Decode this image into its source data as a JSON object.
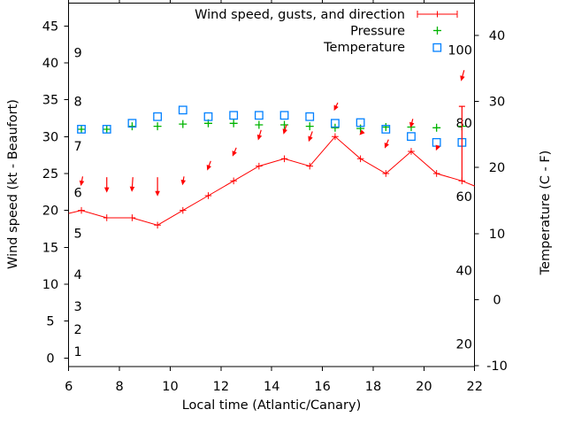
{
  "figure": {
    "background": "#ffffff",
    "colors": {
      "wind": "#ff0000",
      "pressure": "#00b400",
      "temperature": "#0080ff",
      "axis": "#000000"
    },
    "legend": {
      "position": "top-right-inside",
      "items": [
        {
          "label": "Wind speed, gusts, and direction",
          "series": "wind",
          "glyph": "errorbar-sample",
          "color": "#ff0000"
        },
        {
          "label": "Pressure",
          "series": "pressure",
          "glyph": "plus",
          "color": "#00b400"
        },
        {
          "label": "Temperature",
          "series": "temperature",
          "glyph": "open-square",
          "color": "#0080ff"
        }
      ]
    }
  },
  "chart_data": {
    "type": "line",
    "xlabel": "Local time (Atlantic/Canary)",
    "ylabel_left": "Wind speed (kt - Beaufort)",
    "ylabel_right": "Temperature (C - F)",
    "x_range": [
      6,
      22
    ],
    "y_left_range_kt": [
      -1.2,
      48.1
    ],
    "y_right_range_c": [
      -10.2,
      44.9
    ],
    "x_ticks": [
      6,
      8,
      10,
      12,
      14,
      16,
      18,
      20,
      22
    ],
    "y_left_ticks_kt": [
      0,
      5,
      10,
      15,
      20,
      25,
      30,
      35,
      40,
      45
    ],
    "y_right_ticks_c": [
      -10,
      0,
      10,
      20,
      30,
      40
    ],
    "grid": false,
    "beaufort_scale_labels": [
      {
        "text": "1",
        "kt": 0.9
      },
      {
        "text": "2",
        "kt": 3.9
      },
      {
        "text": "3",
        "kt": 7.0
      },
      {
        "text": "4",
        "kt": 11.3
      },
      {
        "text": "5",
        "kt": 16.9
      },
      {
        "text": "6",
        "kt": 22.4
      },
      {
        "text": "7",
        "kt": 28.7
      },
      {
        "text": "8",
        "kt": 34.8
      },
      {
        "text": "9",
        "kt": 41.4
      }
    ],
    "fahrenheit_scale_labels": [
      {
        "text": "20",
        "c": -6.7
      },
      {
        "text": "40",
        "c": 4.4
      },
      {
        "text": "60",
        "c": 15.6
      },
      {
        "text": "80",
        "c": 26.7
      },
      {
        "text": "100",
        "c": 37.8
      }
    ],
    "x": [
      6.5,
      7.5,
      8.5,
      9.5,
      10.5,
      11.5,
      12.5,
      13.5,
      14.5,
      15.5,
      16.5,
      17.5,
      18.5,
      19.5,
      20.5,
      21.5
    ],
    "series": [
      {
        "name": "Wind speed",
        "unit": "kt",
        "style": "line-with-plus-markers",
        "color": "#ff0000",
        "values": [
          20,
          19,
          19,
          18,
          20,
          22,
          24,
          26,
          27,
          26,
          30,
          27,
          25,
          28,
          25,
          24
        ],
        "clipped_edge_points": {
          "start": [
            6.0,
            19.6
          ],
          "end": [
            22.0,
            23.3
          ]
        }
      },
      {
        "name": "Wind gusts and direction",
        "unit": "kt",
        "style": "downward-direction-arrows",
        "color": "#ff0000",
        "arrow_tail_kt": [
          24.6,
          24.5,
          24.5,
          24.5,
          24.6,
          26.7,
          28.5,
          30.9,
          31.6,
          30.7,
          34.6,
          30.7,
          29.6,
          32.4,
          28.8,
          39.0
        ],
        "arrow_tip_kt": [
          23.3,
          22.4,
          22.5,
          21.9,
          23.4,
          25.4,
          27.3,
          29.5,
          30.3,
          29.3,
          33.5,
          30.2,
          28.4,
          31.2,
          28.1,
          37.5
        ],
        "arrow_dx_hours": [
          -0.07,
          0,
          -0.04,
          0,
          -0.06,
          -0.14,
          -0.15,
          -0.12,
          -0.12,
          -0.15,
          -0.15,
          -0.14,
          -0.15,
          -0.09,
          -0.09,
          -0.12
        ],
        "gust_error_bar": {
          "x": 21.5,
          "from_kt": 24,
          "to_kt": 34.1
        }
      },
      {
        "name": "Pressure",
        "unit": "plotted without visible scale (position in left-axis kt units)",
        "style": "plus-markers",
        "color": "#00b400",
        "position_kt": [
          31.0,
          31.0,
          31.4,
          31.4,
          31.7,
          31.8,
          31.8,
          31.6,
          31.6,
          31.4,
          31.2,
          31.1,
          31.3,
          31.3,
          31.2,
          31.4
        ]
      },
      {
        "name": "Temperature",
        "unit": "C",
        "style": "open-square-markers",
        "color": "#0080ff",
        "values": [
          25.8,
          25.8,
          26.7,
          27.7,
          28.7,
          27.7,
          27.9,
          27.9,
          27.9,
          27.7,
          26.7,
          26.8,
          25.8,
          24.7,
          23.8,
          23.8
        ]
      }
    ]
  }
}
